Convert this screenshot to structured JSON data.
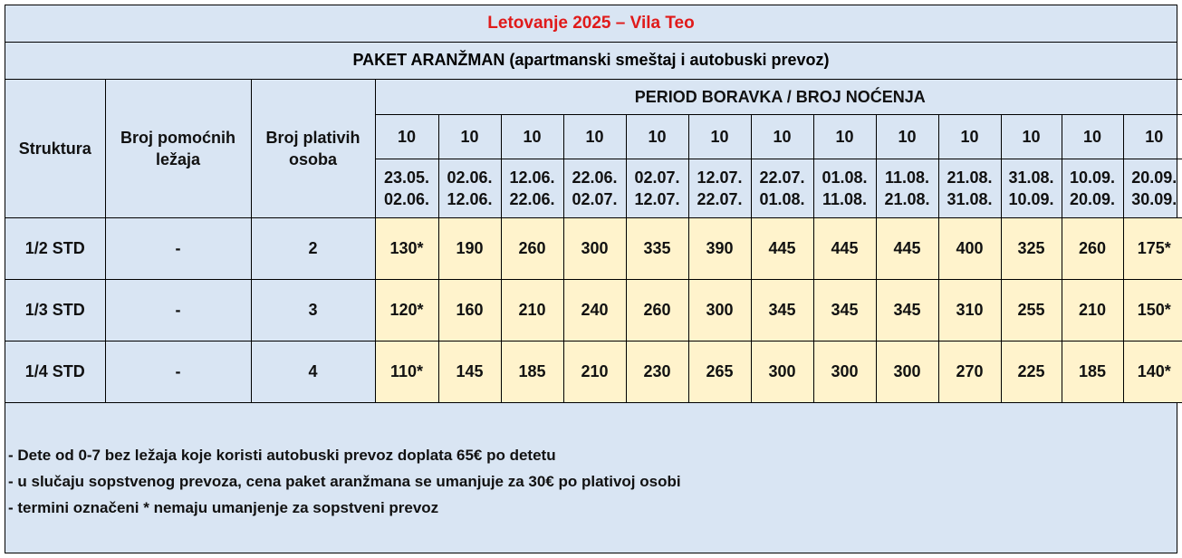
{
  "title": "Letovanje 2025 – Vila Teo",
  "subtitle": "PAKET ARANŽMAN (apartmanski smeštaj i autobuski prevoz)",
  "headers": {
    "structure": "Struktura",
    "extra_beds": [
      "Broj pomoćnih",
      "ležaja"
    ],
    "paying_persons": [
      "Broj plativih",
      "osoba"
    ],
    "period": "PERIOD BORAVKA / BROJ NOĆENJA"
  },
  "periods": [
    {
      "nights": "10",
      "from": "23.05.",
      "to": "02.06."
    },
    {
      "nights": "10",
      "from": "02.06.",
      "to": "12.06."
    },
    {
      "nights": "10",
      "from": "12.06.",
      "to": "22.06."
    },
    {
      "nights": "10",
      "from": "22.06.",
      "to": "02.07."
    },
    {
      "nights": "10",
      "from": "02.07.",
      "to": "12.07."
    },
    {
      "nights": "10",
      "from": "12.07.",
      "to": "22.07."
    },
    {
      "nights": "10",
      "from": "22.07.",
      "to": "01.08."
    },
    {
      "nights": "10",
      "from": "01.08.",
      "to": "11.08."
    },
    {
      "nights": "10",
      "from": "11.08.",
      "to": "21.08."
    },
    {
      "nights": "10",
      "from": "21.08.",
      "to": "31.08."
    },
    {
      "nights": "10",
      "from": "31.08.",
      "to": "10.09."
    },
    {
      "nights": "10",
      "from": "10.09.",
      "to": "20.09."
    },
    {
      "nights": "10",
      "from": "20.09.",
      "to": "30.09."
    }
  ],
  "rows": [
    {
      "structure": "1/2 STD",
      "extra_beds": "-",
      "paying": "2",
      "prices": [
        "130*",
        "190",
        "260",
        "300",
        "335",
        "390",
        "445",
        "445",
        "445",
        "400",
        "325",
        "260",
        "175*"
      ]
    },
    {
      "structure": "1/3 STD",
      "extra_beds": "-",
      "paying": "3",
      "prices": [
        "120*",
        "160",
        "210",
        "240",
        "260",
        "300",
        "345",
        "345",
        "345",
        "310",
        "255",
        "210",
        "150*"
      ]
    },
    {
      "structure": "1/4 STD",
      "extra_beds": "-",
      "paying": "4",
      "prices": [
        "110*",
        "145",
        "185",
        "210",
        "230",
        "265",
        "300",
        "300",
        "300",
        "270",
        "225",
        "185",
        "140*"
      ]
    }
  ],
  "notes": [
    "- Dete od 0-7 bez ležaja koje koristi autobuski prevoz doplata 65€ po detetu",
    "- u slučaju sopstvenog prevoza, cena paket aranžmana se umanjuje za 30€ po plativoj osobi",
    "- termini označeni * nemaju umanjenje za sopstveni prevoz"
  ]
}
